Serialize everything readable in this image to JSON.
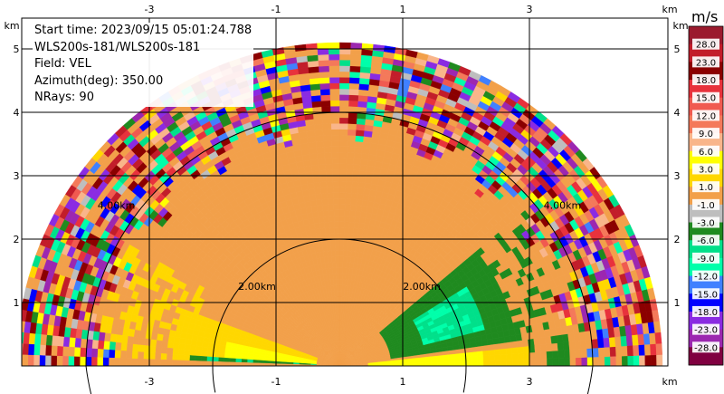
{
  "info": {
    "start_time": "Start time: 2023/09/15 05:01:24.788",
    "instrument": "WLS200s-181/WLS200s-181",
    "field": "Field: VEL",
    "azimuth": "Azimuth(deg): 350.00",
    "nrays": "NRays: 90"
  },
  "colorbar": {
    "unit": "m/s",
    "labels": [
      "28.0",
      "23.0",
      "18.0",
      "15.0",
      "12.0",
      "9.0",
      "6.0",
      "3.0",
      "1.0",
      "-1.0",
      "-3.0",
      "-6.0",
      "-9.0",
      "-12.0",
      "-15.0",
      "-18.0",
      "-23.0",
      "-28.0"
    ],
    "colors": [
      "#9b1b2e",
      "#c21d2a",
      "#8b0000",
      "#e8323c",
      "#f05a50",
      "#f4795a",
      "#f9b58a",
      "#ffff00",
      "#ffd700",
      "#f2a04a",
      "#bebebe",
      "#1f8a1f",
      "#00e08a",
      "#00ffaa",
      "#4080ff",
      "#0000ff",
      "#8a2be2",
      "#9c27b0",
      "#800040"
    ]
  },
  "chart_data": {
    "type": "heatmap",
    "subtype": "ppi-half-disk",
    "x_unit": "km",
    "y_unit": "km",
    "xlim": [
      -5.5,
      4.2
    ],
    "ylim": [
      0,
      5.55
    ],
    "x_ticks": [
      "-3",
      "-1",
      "1",
      "3"
    ],
    "y_ticks": [
      "1",
      "2",
      "3",
      "4",
      "5"
    ],
    "grid": true,
    "max_range_km": 5.1,
    "range_rings": [
      {
        "radius_km": 2.0,
        "label": "2.00km"
      },
      {
        "radius_km": 4.0,
        "label": "4.00km"
      }
    ],
    "features": [
      {
        "name": "left low-level band",
        "value_ms": 1.0,
        "range_km": [
          0.4,
          2.6
        ],
        "angle_deg": [
          160,
          178
        ]
      },
      {
        "name": "right low-level band",
        "value_ms": -3.0,
        "range_km": [
          0.8,
          2.8
        ],
        "angle_deg": [
          8,
          40
        ]
      },
      {
        "name": "near-zero region",
        "value_ms": -1.0,
        "range_km": [
          0.0,
          4.0
        ],
        "angle_deg": [
          0,
          180
        ]
      },
      {
        "name": "noise ring",
        "value_ms": null,
        "range_km": [
          3.8,
          5.1
        ],
        "angle_deg": [
          0,
          180
        ]
      }
    ]
  }
}
